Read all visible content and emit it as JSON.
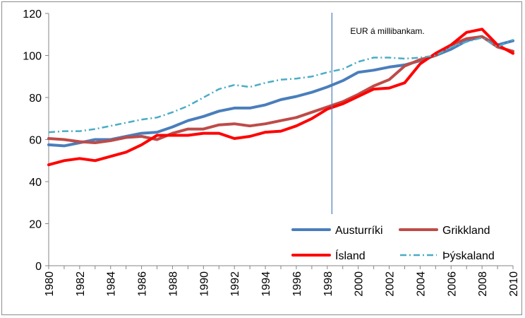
{
  "chart_data": {
    "type": "line",
    "x": [
      1980,
      1981,
      1982,
      1983,
      1984,
      1985,
      1986,
      1987,
      1988,
      1989,
      1990,
      1991,
      1992,
      1993,
      1994,
      1995,
      1996,
      1997,
      1998,
      1999,
      2000,
      2001,
      2002,
      2003,
      2004,
      2005,
      2006,
      2007,
      2008,
      2009,
      2010
    ],
    "x_tick_labels": [
      "1980",
      "1982",
      "1984",
      "1986",
      "1988",
      "1990",
      "1992",
      "1994",
      "1996",
      "1998",
      "2000",
      "2002",
      "2004",
      "2006",
      "2008",
      "2010"
    ],
    "ylim": [
      0,
      120
    ],
    "y_ticks": [
      "0",
      "20",
      "40",
      "60",
      "80",
      "100",
      "120"
    ],
    "grid": "none",
    "legend_position": "bottom-right",
    "annotation": {
      "text": "EUR á millibankam.",
      "x": 1998.3
    },
    "series": [
      {
        "name": "Austurríki",
        "color": "#4a7ebb",
        "style": "solid",
        "values": [
          57.5,
          57,
          58.5,
          60,
          60,
          61.5,
          63,
          63.5,
          66,
          69,
          71,
          73.5,
          75,
          75,
          76.5,
          79,
          80.5,
          82.5,
          85,
          88,
          92,
          93,
          94.5,
          95.5,
          97.5,
          100,
          103,
          107,
          109,
          105,
          107
        ]
      },
      {
        "name": "Grikkland",
        "color": "#be4b48",
        "style": "solid",
        "values": [
          60.5,
          60,
          59,
          58.5,
          59.5,
          61,
          61.5,
          60,
          63,
          65,
          65,
          67,
          67.5,
          66.5,
          67.5,
          69,
          70.5,
          73,
          75.5,
          78,
          81.5,
          85.5,
          88.5,
          95,
          98,
          100,
          105,
          108,
          109,
          104,
          102
        ]
      },
      {
        "name": "Ísland",
        "color": "#ff0000",
        "style": "solid",
        "values": [
          48,
          50,
          51,
          50,
          52,
          54,
          57.5,
          62,
          62,
          62,
          63,
          63,
          60.5,
          61.5,
          63.5,
          64,
          66.5,
          70,
          74.5,
          77,
          80.5,
          84,
          84.5,
          87,
          96,
          101,
          105,
          111,
          112.5,
          105,
          101
        ]
      },
      {
        "name": "Þýskaland",
        "color": "#4bacc6",
        "style": "dashdot",
        "values": [
          63.5,
          64,
          64,
          65,
          66.5,
          68,
          69.5,
          70.5,
          73,
          76,
          80,
          84,
          86,
          85,
          87,
          88.5,
          89,
          90,
          92,
          93.5,
          97,
          99,
          99,
          98.5,
          99,
          100,
          104,
          106.5,
          108.5,
          104,
          107.5
        ]
      }
    ]
  }
}
